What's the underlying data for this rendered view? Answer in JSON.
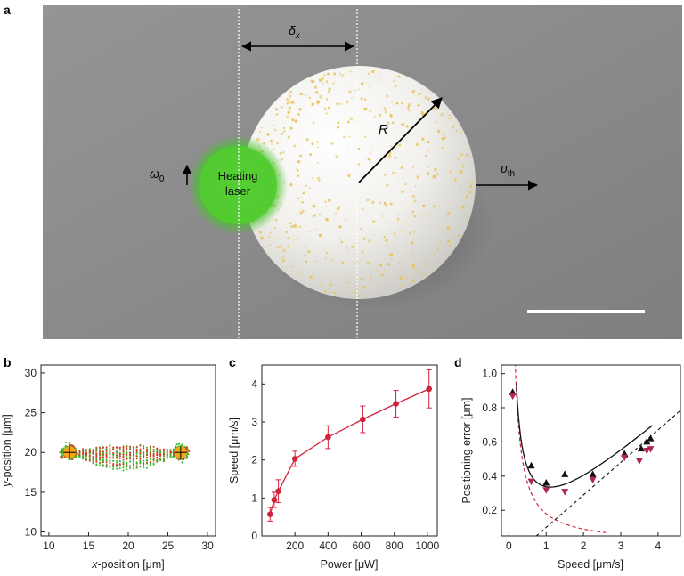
{
  "figure": {
    "panels": {
      "a": {
        "letter": "a",
        "labels": {
          "delta": "δ",
          "delta_sub": "x",
          "radius": "R",
          "omega": "ω",
          "omega_sub": "0",
          "velocity": "υ",
          "velocity_sub": "th",
          "laser_line1": "Heating",
          "laser_line2": "laser"
        },
        "colors": {
          "background": "#8c8c8c",
          "sphere": "#f4f3ef",
          "particles": "#e8c25a",
          "laser": "#4cc92c"
        }
      },
      "b": {
        "letter": "b"
      },
      "c": {
        "letter": "c"
      },
      "d": {
        "letter": "d"
      }
    }
  },
  "chart_data": [
    {
      "panel": "b",
      "type": "scatter",
      "xlabel_italic": "x",
      "xlabel_rest": "-position [μm]",
      "ylabel_italic": "y",
      "ylabel_rest": "-position [μm]",
      "xlim": [
        9,
        31
      ],
      "ylim": [
        9.5,
        31
      ],
      "xticks": [
        10,
        15,
        20,
        25,
        30
      ],
      "yticks": [
        10,
        15,
        20,
        25,
        30
      ],
      "targets": [
        {
          "x": 12.6,
          "y": 20.0
        },
        {
          "x": 26.6,
          "y": 20.0
        }
      ],
      "series": [
        {
          "color": "#3bb82a"
        },
        {
          "color": "#d63a2a"
        }
      ]
    },
    {
      "panel": "c",
      "type": "line",
      "xlabel": "Power [μW]",
      "ylabel": "Speed [μm/s]",
      "xlim": [
        0,
        1060
      ],
      "ylim": [
        0,
        4.5
      ],
      "xticks": [
        200,
        400,
        600,
        800,
        1000
      ],
      "yticks": [
        0,
        1,
        2,
        3,
        4
      ],
      "color": "#d0243c",
      "x": [
        50,
        75,
        100,
        200,
        400,
        610,
        810,
        1010
      ],
      "y": [
        0.57,
        0.95,
        1.18,
        2.03,
        2.6,
        3.07,
        3.48,
        3.87
      ],
      "err": [
        0.18,
        0.2,
        0.3,
        0.2,
        0.3,
        0.35,
        0.35,
        0.5
      ]
    },
    {
      "panel": "d",
      "type": "scatter",
      "xlabel": "Speed [μm/s]",
      "ylabel": "Positioning error [μm]",
      "xlim": [
        -0.2,
        4.6
      ],
      "ylim": [
        0.05,
        1.05
      ],
      "xticks": [
        0,
        1,
        2,
        3,
        4
      ],
      "yticks": [
        0.2,
        0.4,
        0.6,
        0.8,
        1.0
      ],
      "series": [
        {
          "marker": "triangle-up",
          "color": "#111111",
          "x": [
            0.1,
            0.6,
            1.0,
            1.5,
            2.25,
            3.1,
            3.55,
            3.7,
            3.8
          ],
          "y": [
            0.89,
            0.46,
            0.36,
            0.41,
            0.41,
            0.53,
            0.56,
            0.6,
            0.62
          ]
        },
        {
          "marker": "triangle-down",
          "color": "#b0245a",
          "x": [
            0.1,
            0.6,
            1.0,
            1.5,
            2.25,
            3.1,
            3.5,
            3.7,
            3.8
          ],
          "y": [
            0.87,
            0.37,
            0.32,
            0.31,
            0.38,
            0.51,
            0.49,
            0.55,
            0.56
          ]
        }
      ],
      "fit_curve": {
        "style": "solid",
        "color": "#111111"
      },
      "thermal_curve": {
        "style": "dashed",
        "color": "#d0243c"
      },
      "linear_curve": {
        "style": "dashed",
        "color": "#111111"
      }
    }
  ]
}
